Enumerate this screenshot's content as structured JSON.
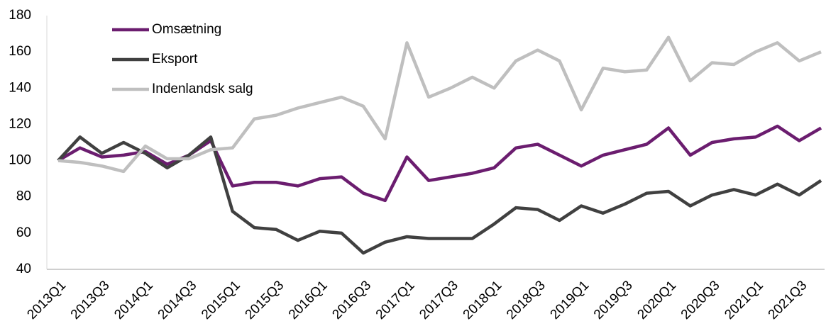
{
  "chart_data": {
    "type": "line",
    "categories": [
      "2013Q1",
      null,
      "2013Q3",
      null,
      "2014Q1",
      null,
      "2014Q3",
      null,
      "2015Q1",
      null,
      "2015Q3",
      null,
      "2016Q1",
      null,
      "2016Q3",
      null,
      "2017Q1",
      null,
      "2017Q3",
      null,
      "2018Q1",
      null,
      "2018Q3",
      null,
      "2019Q1",
      null,
      "2019Q3",
      null,
      "2020Q1",
      null,
      "2020Q3",
      null,
      "2021Q1",
      null,
      "2021Q3",
      null
    ],
    "series": [
      {
        "name": "Omsætning",
        "color": "#6b1d6f",
        "values": [
          100,
          107,
          102,
          103,
          105,
          98,
          103,
          111,
          86,
          88,
          88,
          86,
          90,
          91,
          82,
          78,
          102,
          89,
          91,
          93,
          96,
          107,
          109,
          103,
          97,
          103,
          106,
          109,
          118,
          103,
          110,
          112,
          113,
          119,
          111,
          118
        ]
      },
      {
        "name": "Eksport",
        "color": "#404040",
        "values": [
          100,
          113,
          104,
          110,
          104,
          96,
          103,
          113,
          72,
          63,
          62,
          56,
          61,
          60,
          49,
          55,
          58,
          57,
          57,
          57,
          65,
          74,
          73,
          67,
          75,
          71,
          76,
          82,
          83,
          75,
          81,
          84,
          81,
          87,
          81,
          89
        ]
      },
      {
        "name": "Indenlandsk salg",
        "color": "#bfbfbf",
        "values": [
          100,
          99,
          97,
          94,
          108,
          101,
          101,
          106,
          107,
          123,
          125,
          129,
          132,
          135,
          130,
          112,
          165,
          135,
          140,
          146,
          140,
          155,
          161,
          155,
          128,
          151,
          149,
          150,
          168,
          144,
          154,
          153,
          160,
          165,
          155,
          160
        ]
      }
    ],
    "ylim": [
      40,
      180
    ],
    "yticks": [
      40,
      60,
      80,
      100,
      120,
      140,
      160,
      180
    ],
    "grid": false,
    "legend": "upper left"
  }
}
